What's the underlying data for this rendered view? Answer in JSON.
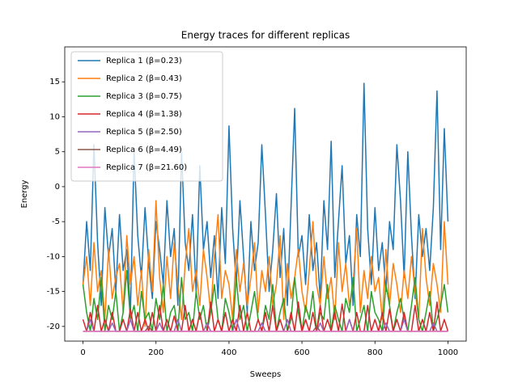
{
  "chart_data": {
    "type": "line",
    "title": "Energy traces for different replicas",
    "x_label": "Sweeps",
    "y_label": "Energy",
    "x": [
      0,
      10,
      20,
      30,
      40,
      50,
      60,
      70,
      80,
      90,
      100,
      110,
      120,
      130,
      140,
      150,
      160,
      170,
      180,
      190,
      200,
      210,
      220,
      230,
      240,
      250,
      260,
      270,
      280,
      290,
      300,
      310,
      320,
      330,
      340,
      350,
      360,
      370,
      380,
      390,
      400,
      410,
      420,
      430,
      440,
      450,
      460,
      470,
      480,
      490,
      500,
      510,
      520,
      530,
      540,
      550,
      560,
      570,
      580,
      590,
      600,
      610,
      620,
      630,
      640,
      650,
      660,
      670,
      680,
      690,
      700,
      710,
      720,
      730,
      740,
      750,
      760,
      770,
      780,
      790,
      800,
      810,
      820,
      830,
      840,
      850,
      860,
      870,
      880,
      890,
      900,
      910,
      920,
      930,
      940,
      950,
      960,
      970,
      980,
      990,
      1000
    ],
    "series": [
      {
        "name": "Replica 1 (β=0.23)",
        "color": "#1f77b4",
        "values": [
          -14,
          -5,
          -12,
          6,
          -8,
          -17,
          -3,
          -10,
          -6,
          -15,
          -4,
          -12,
          -9,
          -18,
          5,
          -7,
          -13,
          -3,
          -11,
          -16,
          -5,
          -9,
          -14,
          -2,
          -10,
          -6,
          -17,
          5,
          -8,
          -12,
          -4,
          -15,
          3,
          -9,
          -5,
          -13,
          -7,
          -16,
          -3,
          -11,
          8.7,
          -6,
          -14,
          -2,
          -10,
          -18,
          -5,
          -12,
          -8,
          6,
          -4,
          -15,
          -9,
          -1,
          -13,
          -6,
          -17,
          -3,
          11.2,
          -10,
          -7,
          -14,
          -4,
          -12,
          -8,
          -16,
          -2,
          -9,
          6.5,
          -13,
          -5,
          3,
          -11,
          -7,
          -17,
          -4,
          -10,
          14.8,
          -6,
          -14,
          -3,
          -12,
          -8,
          -15,
          -5,
          -9,
          6,
          -2,
          -13,
          5,
          -7,
          -16,
          -4,
          -10,
          -6,
          -12,
          -3,
          13.7,
          -9,
          8.3,
          -5
        ]
      },
      {
        "name": "Replica 2 (β=0.43)",
        "color": "#ff7f0e",
        "values": [
          -14,
          -10,
          -17,
          -8,
          -15,
          -12,
          -19,
          -9,
          -16,
          -13,
          -11,
          -18,
          -7,
          -14,
          -10,
          -17,
          -12,
          -20,
          -9,
          -15,
          -2,
          -13,
          -18,
          -10,
          -16,
          -8,
          -14,
          -19,
          -11,
          -6,
          -15,
          -12,
          -17,
          -9,
          -13,
          -18,
          -10,
          -4,
          -16,
          -12,
          -14,
          -19,
          -9,
          -15,
          -11,
          -17,
          -13,
          -8,
          -18,
          -12,
          -15,
          -10,
          -17,
          -14,
          -7,
          -19,
          -11,
          -16,
          -13,
          -9,
          -15,
          -18,
          -12,
          -5,
          -14,
          -17,
          -10,
          -16,
          -13,
          -19,
          -8,
          -15,
          -11,
          -17,
          -14,
          -6,
          -18,
          -12,
          -16,
          -10,
          -15,
          -13,
          -19,
          -9,
          -17,
          -11,
          -14,
          -18,
          -12,
          -16,
          -10,
          -15,
          -19,
          -6,
          -13,
          -17,
          -11,
          -14,
          -18,
          -5,
          -14
        ]
      },
      {
        "name": "Replica 3 (β=0.75)",
        "color": "#2ca02c",
        "values": [
          -14,
          -18,
          -20.7,
          -16,
          -19,
          -13,
          -20.7,
          -17,
          -19,
          -15,
          -20.7,
          -18,
          -12,
          -19,
          -17,
          -20.7,
          -15,
          -19,
          -18,
          -20.7,
          -16,
          -19,
          -14,
          -20.7,
          -18,
          -17,
          -20.7,
          -13,
          -19,
          -18,
          -20.7,
          -15,
          -19,
          -17,
          -20.7,
          -18,
          -14,
          -19,
          -20.7,
          -16,
          -18,
          -20.7,
          -13,
          -19,
          -17,
          -20.7,
          -18,
          -15,
          -19,
          -20.7,
          -17,
          -19,
          -14,
          -20.7,
          -18,
          -16,
          -20.7,
          -19,
          -13,
          -18,
          -20.7,
          -17,
          -19,
          -15,
          -20.7,
          -18,
          -19,
          -14,
          -20.7,
          -17,
          -19,
          -20.7,
          -16,
          -18,
          -13,
          -20.7,
          -19,
          -17,
          -20.7,
          -15,
          -18,
          -19,
          -20.7,
          -14,
          -17,
          -20.7,
          -18,
          -16,
          -19,
          -20.7,
          -17,
          -13,
          -19,
          -20.7,
          -18,
          -15,
          -20.7,
          -19,
          -17,
          -14,
          -18
        ]
      },
      {
        "name": "Replica 4 (β=1.38)",
        "color": "#d62728",
        "values": [
          -19,
          -20.7,
          -18,
          -20.7,
          -17,
          -20.7,
          -19,
          -20.7,
          -18,
          -20.7,
          -20.7,
          -19,
          -20.7,
          -17.5,
          -20.7,
          -18,
          -20.7,
          -19,
          -20.7,
          -18,
          -20.7,
          -17,
          -20.7,
          -19,
          -20.7,
          -18.5,
          -20.7,
          -20.7,
          -17,
          -20.7,
          -19,
          -20.7,
          -18,
          -20.7,
          -20.7,
          -16.5,
          -20.7,
          -19,
          -20.7,
          -18,
          -20.7,
          -19,
          -20.7,
          -17,
          -20.7,
          -18,
          -20.7,
          -20.7,
          -19,
          -20.7,
          -18,
          -20.7,
          -17,
          -20.7,
          -19,
          -20.7,
          -20.7,
          -18,
          -20.7,
          -16.5,
          -20.7,
          -19,
          -20.7,
          -18,
          -20.7,
          -17,
          -20.7,
          -19,
          -20.7,
          -18,
          -20.7,
          -16.8,
          -20.7,
          -19,
          -20.7,
          -18,
          -20.7,
          -20.7,
          -17,
          -20.7,
          -19,
          -20.7,
          -18,
          -20.7,
          -17.5,
          -20.7,
          -19,
          -20.7,
          -18,
          -20.7,
          -20.7,
          -17,
          -20.7,
          -19,
          -20.7,
          -18,
          -20.7,
          -16.5,
          -20.7,
          -19,
          -20.7
        ]
      },
      {
        "name": "Replica 5 (β=2.50)",
        "color": "#9467bd",
        "values": [
          -20.7,
          -20.7,
          -19,
          -20.7,
          -20.7,
          -20.7,
          -20.7,
          -20.7,
          -19.5,
          -20.7,
          -20.7,
          -20.7,
          -20.7,
          -19,
          -20.7,
          -20.7,
          -20.7,
          -20.7,
          -20.7,
          -20.7,
          -20.7,
          -19.5,
          -20.7,
          -20.7,
          -20.7,
          -20.7,
          -19,
          -20.7,
          -20.7,
          -20.7,
          -20.7,
          -20.7,
          -20.7,
          -20.7,
          -19.5,
          -20.7,
          -20.7,
          -20.7,
          -20.7,
          -20.7,
          -20.7,
          -20.7,
          -19,
          -20.7,
          -20.7,
          -20.7,
          -20.7,
          -20.7,
          -20.7,
          -19.5,
          -20.7,
          -20.7,
          -20.7,
          -20.7,
          -20.7,
          -20.7,
          -19,
          -20.7,
          -20.7,
          -20.7,
          -20.7,
          -20.7,
          -20.7,
          -20.7,
          -20.7,
          -19.5,
          -20.7,
          -20.7,
          -20.7,
          -20.7,
          -20.7,
          -20.7,
          -20.7,
          -19,
          -20.7,
          -20.7,
          -20.7,
          -20.7,
          -20.7,
          -20.7,
          -20.7,
          -20.7,
          -20.7,
          -19.5,
          -20.7,
          -20.7,
          -20.7,
          -20.7,
          -19,
          -20.7,
          -20.7,
          -20.7,
          -20.7,
          -20.7,
          -20.7,
          -20.7,
          -19.5,
          -20.7,
          -20.7,
          -20.7,
          -20.7
        ]
      },
      {
        "name": "Replica 6 (β=4.49)",
        "color": "#8c564b",
        "values": [
          -20.7,
          -20.7,
          -20.7,
          -20.7,
          -20.7,
          -20.7,
          -20.7,
          -20.7,
          -20.7,
          -20.7,
          -20.7,
          -20.7,
          -20.7,
          -20.7,
          -20.7,
          -20.7,
          -20.7,
          -20.7,
          -20,
          -20.7,
          -20.7,
          -20.7,
          -20.7,
          -20.7,
          -20.7,
          -20.7,
          -20.7,
          -20.7,
          -20.7,
          -20.7,
          -20.7,
          -20.7,
          -20.7,
          -20.7,
          -20.7,
          -20.7,
          -20.7,
          -20.7,
          -20.7,
          -20.7,
          -20.7,
          -20.7,
          -20.7,
          -20.7,
          -20.7,
          -20.7,
          -20.7,
          -20.7,
          -20.7,
          -20.7,
          -20.7,
          -20.7,
          -20.7,
          -20.7,
          -20.7,
          -20.7,
          -20.7,
          -20.7,
          -20.7,
          -20.7,
          -20.7,
          -20.7,
          -20.7,
          -20.7,
          -20,
          -20.7,
          -20.7,
          -20.7,
          -20.7,
          -20.7,
          -20.7,
          -20.7,
          -20.7,
          -20.7,
          -20.7,
          -20.7,
          -20.7,
          -20.7,
          -20.7,
          -20.7,
          -20.7,
          -20.7,
          -20.7,
          -20.7,
          -20.7,
          -20.7,
          -20.7,
          -20.7,
          -20.7,
          -20.7,
          -20.7,
          -20.7,
          -20.7,
          -20.7,
          -20.7,
          -20.7,
          -20.7,
          -20.7,
          -20.7,
          -20.7,
          -20.7
        ]
      },
      {
        "name": "Replica 7 (β=21.60)",
        "color": "#e377c2",
        "values": [
          -20.7,
          -20.7,
          -20.7,
          -20.7,
          -20.7,
          -20.7,
          -20.7,
          -20.7,
          -20.7,
          -20.7,
          -20.7,
          -20.7,
          -20.7,
          -20.7,
          -20.7,
          -20.7,
          -20.7,
          -20.7,
          -20.7,
          -20.7,
          -20.7,
          -20.7,
          -20.7,
          -20.7,
          -20.7,
          -20.7,
          -20.7,
          -20.7,
          -20.7,
          -20.7,
          -20.7,
          -20.7,
          -20.7,
          -20.7,
          -20.7,
          -20.7,
          -20.7,
          -20.7,
          -20.7,
          -20.7,
          -20.7,
          -20.7,
          -20.7,
          -20.7,
          -20.7,
          -20.7,
          -20.7,
          -20.7,
          -20.7,
          -20.7,
          -20.7,
          -20.7,
          -20.7,
          -20.7,
          -20.7,
          -20.7,
          -20.7,
          -20.7,
          -20.7,
          -20.7,
          -20.7,
          -20.7,
          -20.7,
          -20.7,
          -20.7,
          -20.7,
          -20.7,
          -20.7,
          -20.7,
          -20.7,
          -20.7,
          -20.7,
          -20.7,
          -20.7,
          -20.7,
          -20.7,
          -20.7,
          -20.7,
          -20.7,
          -20.7,
          -20.7,
          -20.7,
          -20.7,
          -20.7,
          -20.7,
          -20.7,
          -20.7,
          -20.7,
          -20.7,
          -20.7,
          -20.7,
          -20.7,
          -20.7,
          -20.7,
          -20.7,
          -20.7,
          -20.7,
          -20.7,
          -20.7,
          -20.7,
          -20.7
        ]
      }
    ],
    "xlim": [
      -50,
      1050
    ],
    "ylim": [
      -22.1,
      20.0
    ],
    "xticks": [
      0,
      200,
      400,
      600,
      800,
      1000
    ],
    "yticks": [
      -20,
      -15,
      -10,
      -5,
      0,
      5,
      10,
      15
    ],
    "legend": "upper left",
    "grid": false
  }
}
